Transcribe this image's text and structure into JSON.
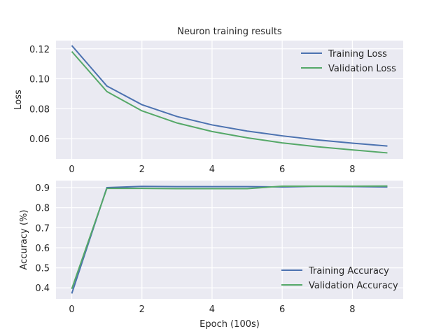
{
  "chart_data": [
    {
      "type": "line",
      "title": "Neuron training results",
      "xlabel": "",
      "ylabel": "Loss",
      "xlim": [
        -0.45,
        9.45
      ],
      "ylim": [
        0.0465,
        0.1255
      ],
      "xticks": [
        "0",
        "2",
        "4",
        "6",
        "8"
      ],
      "xtick_values": [
        0,
        2,
        4,
        6,
        8
      ],
      "yticks": [
        "0.06",
        "0.08",
        "0.10",
        "0.12"
      ],
      "ytick_values": [
        0.06,
        0.08,
        0.1,
        0.12
      ],
      "grid": true,
      "legend": "top-right",
      "x": [
        0,
        1,
        2,
        3,
        4,
        5,
        6,
        7,
        8,
        9
      ],
      "series": [
        {
          "name": "Training Loss",
          "color": "#4c72b0",
          "values": [
            0.1222,
            0.0952,
            0.0827,
            0.0748,
            0.0692,
            0.0651,
            0.0619,
            0.0592,
            0.057,
            0.0551
          ]
        },
        {
          "name": "Validation Loss",
          "color": "#55a868",
          "values": [
            0.1182,
            0.0915,
            0.0786,
            0.0705,
            0.0648,
            0.0606,
            0.0572,
            0.0546,
            0.0525,
            0.0505
          ]
        }
      ]
    },
    {
      "type": "line",
      "title": "",
      "xlabel": "Epoch (100s)",
      "ylabel": "Accuracy (%)",
      "xlim": [
        -0.45,
        9.45
      ],
      "ylim": [
        0.345,
        0.935
      ],
      "xticks": [
        "0",
        "2",
        "4",
        "6",
        "8"
      ],
      "xtick_values": [
        0,
        2,
        4,
        6,
        8
      ],
      "yticks": [
        "0.4",
        "0.5",
        "0.6",
        "0.7",
        "0.8",
        "0.9"
      ],
      "ytick_values": [
        0.4,
        0.5,
        0.6,
        0.7,
        0.8,
        0.9
      ],
      "grid": true,
      "legend": "bottom-right",
      "x": [
        0,
        1,
        2,
        3,
        4,
        5,
        6,
        7,
        8,
        9
      ],
      "series": [
        {
          "name": "Training Accuracy",
          "color": "#4c72b0",
          "values": [
            0.372,
            0.9,
            0.906,
            0.905,
            0.905,
            0.905,
            0.903,
            0.906,
            0.905,
            0.903
          ]
        },
        {
          "name": "Validation Accuracy",
          "color": "#55a868",
          "values": [
            0.395,
            0.896,
            0.896,
            0.895,
            0.895,
            0.895,
            0.907,
            0.907,
            0.907,
            0.908
          ]
        }
      ]
    }
  ],
  "style": {
    "plot_background": "#eaeaf2",
    "grid_color": "#ffffff",
    "text_color": "#262626"
  }
}
